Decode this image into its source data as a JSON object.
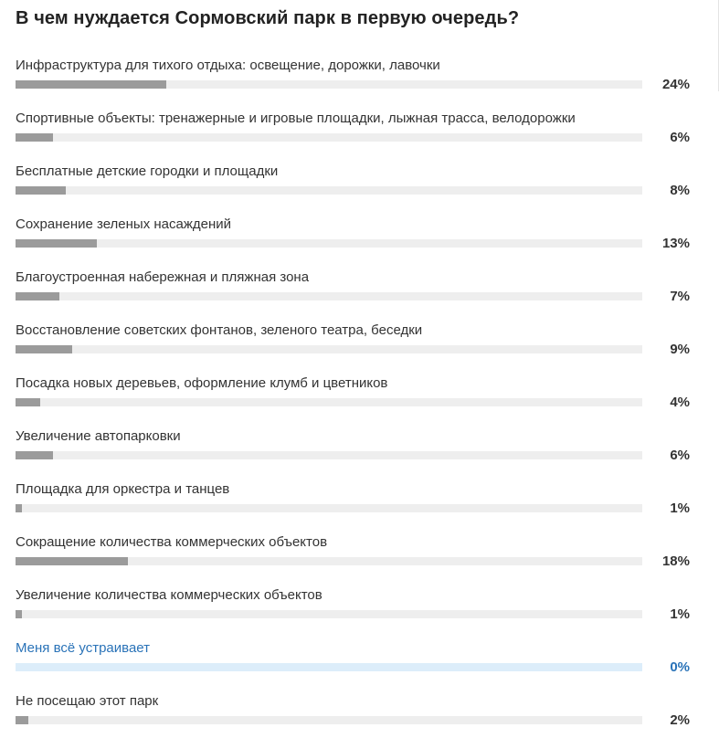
{
  "poll": {
    "title": "В чем нуждается Сормовский парк в первую очередь?",
    "options": [
      {
        "label": "Инфраструктура для тихого отдыха: освещение, дорожки, лавочки",
        "percent_text": "24%",
        "fraction": 0.24,
        "selected": false
      },
      {
        "label": "Спортивные объекты: тренажерные и игровые площадки, лыжная трасса, велодорожки",
        "percent_text": "6%",
        "fraction": 0.06,
        "selected": false
      },
      {
        "label": "Бесплатные детские городки и площадки",
        "percent_text": "8%",
        "fraction": 0.08,
        "selected": false
      },
      {
        "label": "Сохранение зеленых насаждений",
        "percent_text": "13%",
        "fraction": 0.13,
        "selected": false
      },
      {
        "label": "Благоустроенная набережная и пляжная зона",
        "percent_text": "7%",
        "fraction": 0.07,
        "selected": false
      },
      {
        "label": "Восстановление советских фонтанов, зеленого театра, беседки",
        "percent_text": "9%",
        "fraction": 0.09,
        "selected": false
      },
      {
        "label": "Посадка новых деревьев, оформление клумб и цветников",
        "percent_text": "4%",
        "fraction": 0.04,
        "selected": false
      },
      {
        "label": "Увеличение автопарковки",
        "percent_text": "6%",
        "fraction": 0.06,
        "selected": false
      },
      {
        "label": "Площадка для оркестра и танцев",
        "percent_text": "1%",
        "fraction": 0.01,
        "selected": false
      },
      {
        "label": "Сокращение количества коммерческих объектов",
        "percent_text": "18%",
        "fraction": 0.18,
        "selected": false
      },
      {
        "label": "Увеличение количества коммерческих объектов",
        "percent_text": "1%",
        "fraction": 0.01,
        "selected": false
      },
      {
        "label": "Меня всё устраивает",
        "percent_text": "0%",
        "fraction": 0,
        "selected": true
      },
      {
        "label": "Не посещаю этот парк",
        "percent_text": "2%",
        "fraction": 0.02,
        "selected": false
      }
    ]
  },
  "colors": {
    "bar_fill": "#9b9b9b",
    "bar_track": "#eeeeee",
    "selected_text": "#2a73b8",
    "selected_track": "#dcedfa"
  }
}
